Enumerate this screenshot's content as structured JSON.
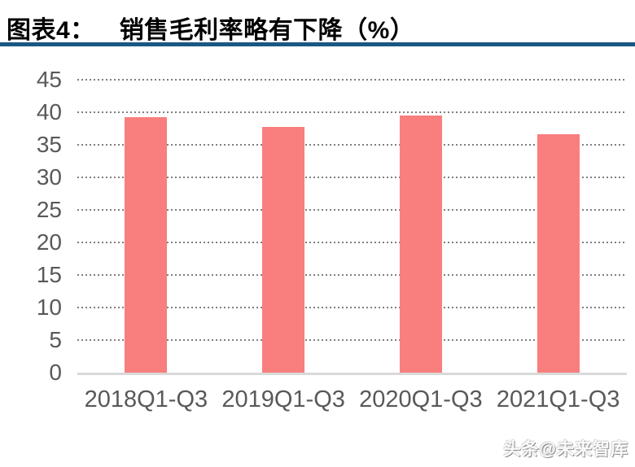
{
  "header": {
    "figure_label": "图表4：",
    "title_text": "销售毛利率略有下降（%）"
  },
  "footer": {
    "watermark": "头条@未来智库"
  },
  "colors": {
    "bar": "#F97E7E",
    "gridline": "#7F7F7F",
    "axis_line": "#D9D9D9",
    "tick_label": "#595959",
    "title": "#000000",
    "divider": "#1B5783"
  },
  "chart_data": {
    "type": "bar",
    "title": "销售毛利率略有下降（%）",
    "categories": [
      "2018Q1-Q3",
      "2019Q1-Q3",
      "2020Q1-Q3",
      "2021Q1-Q3"
    ],
    "values": [
      39.3,
      37.7,
      39.5,
      36.6
    ],
    "xlabel": "",
    "ylabel": "",
    "ylim": [
      0,
      45
    ],
    "ytick_step": 5,
    "yticks": [
      0,
      5,
      10,
      15,
      20,
      25,
      30,
      35,
      40,
      45
    ],
    "grid": "horizontal-dotted",
    "legend": "none",
    "bar_color": "#F97E7E"
  }
}
